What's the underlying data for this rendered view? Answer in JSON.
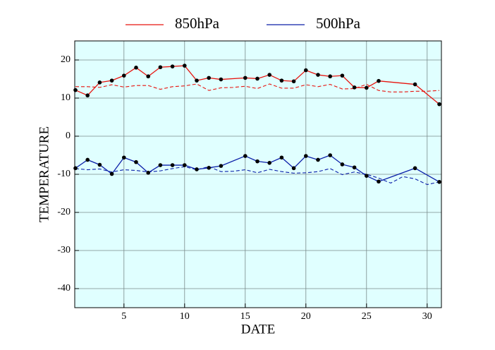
{
  "chart_data": {
    "type": "line",
    "xlabel": "DATE",
    "ylabel": "TEMPERATURE",
    "xlim": [
      1,
      31
    ],
    "ylim": [
      -45,
      25
    ],
    "xticks": [
      5,
      10,
      15,
      20,
      25,
      30
    ],
    "yticks": [
      -40,
      -30,
      -20,
      -10,
      0,
      10,
      20
    ],
    "grid": true,
    "legend": "top",
    "climatology_x": [
      1,
      2,
      3,
      4,
      5,
      6,
      7,
      8,
      9,
      10,
      11,
      12,
      13,
      14,
      15,
      16,
      17,
      18,
      19,
      20,
      21,
      22,
      23,
      24,
      25,
      26,
      27,
      28,
      29,
      30,
      31
    ],
    "series": [
      {
        "name": "850hPa",
        "color": "#e8140f",
        "x": [
          1,
          2,
          3,
          4,
          5,
          6,
          7,
          8,
          9,
          10,
          11,
          12,
          13,
          15,
          16,
          17,
          18,
          19,
          20,
          21,
          22,
          23,
          24,
          25,
          26,
          29,
          31
        ],
        "values": [
          12.1,
          10.7,
          14.1,
          14.6,
          15.9,
          18.0,
          15.7,
          18.1,
          18.3,
          18.5,
          14.6,
          15.3,
          14.9,
          15.3,
          15.1,
          16.1,
          14.6,
          14.4,
          17.3,
          16.1,
          15.7,
          15.9,
          12.8,
          12.7,
          14.5,
          13.6,
          8.4
        ],
        "climatology": [
          13.0,
          13.0,
          12.8,
          13.5,
          12.9,
          13.3,
          13.3,
          12.3,
          13.0,
          13.2,
          13.7,
          12.0,
          12.7,
          12.8,
          13.1,
          12.5,
          13.7,
          12.6,
          12.6,
          13.5,
          13.0,
          13.6,
          12.4,
          12.5,
          13.6,
          12.0,
          11.6,
          11.6,
          11.8,
          11.8,
          12.0
        ]
      },
      {
        "name": "500hPa",
        "color": "#0a1ea8",
        "x": [
          1,
          2,
          3,
          4,
          5,
          6,
          7,
          8,
          9,
          10,
          11,
          12,
          13,
          15,
          16,
          17,
          18,
          19,
          20,
          21,
          22,
          23,
          24,
          25,
          26,
          29,
          31
        ],
        "values": [
          -8.4,
          -6.2,
          -7.5,
          -9.9,
          -5.6,
          -6.8,
          -9.6,
          -7.6,
          -7.6,
          -7.6,
          -8.7,
          -8.3,
          -7.8,
          -5.2,
          -6.6,
          -7.0,
          -5.6,
          -8.4,
          -5.2,
          -6.2,
          -5.0,
          -7.4,
          -8.2,
          -10.4,
          -11.9,
          -8.4,
          -12.0
        ],
        "climatology": [
          -8.5,
          -8.8,
          -8.6,
          -9.4,
          -8.8,
          -9.0,
          -9.4,
          -9.1,
          -8.5,
          -8.0,
          -8.8,
          -8.0,
          -9.3,
          -9.2,
          -8.8,
          -9.6,
          -8.7,
          -9.3,
          -9.7,
          -9.6,
          -9.3,
          -8.5,
          -10.1,
          -9.4,
          -10.0,
          -11.0,
          -12.3,
          -10.6,
          -11.2,
          -12.7,
          -12.0
        ]
      }
    ]
  }
}
